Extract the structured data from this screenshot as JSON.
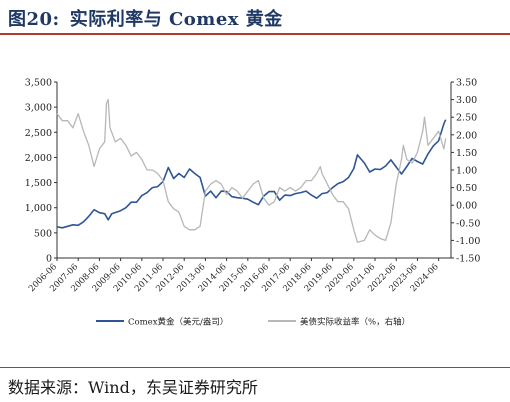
{
  "figure": {
    "number": "图20:",
    "title": "实际利率与 Comex 黄金",
    "source": "数据来源：Wind，东吴证券研究所"
  },
  "chart_data": {
    "type": "line",
    "grid": false,
    "legend_position": "bottom",
    "x_ticks": [
      "2006-06",
      "2007-06",
      "2008-06",
      "2009-06",
      "2010-06",
      "2011-06",
      "2012-06",
      "2013-06",
      "2014-06",
      "2015-06",
      "2016-06",
      "2017-06",
      "2018-06",
      "2019-06",
      "2020-06",
      "2021-06",
      "2022-06",
      "2023-06",
      "2024-06"
    ],
    "y_left": {
      "ylim": [
        0,
        3500
      ],
      "ticks": [
        "0",
        "500",
        "1,000",
        "1,500",
        "2,000",
        "2,500",
        "3,000",
        "3,500"
      ]
    },
    "y_right": {
      "ylim": [
        -1.5,
        3.5
      ],
      "ticks": [
        "-1.50",
        "-1.00",
        "-0.50",
        "0.00",
        "0.50",
        "1.00",
        "1.50",
        "2.00",
        "2.50",
        "3.00",
        "3.50"
      ]
    },
    "series": [
      {
        "name": "Comex黄金（美元/盎司）",
        "axis": "left",
        "color": "#2e5596",
        "points": [
          [
            "2006-06",
            620
          ],
          [
            "2006-09",
            600
          ],
          [
            "2006-12",
            630
          ],
          [
            "2007-03",
            660
          ],
          [
            "2007-06",
            650
          ],
          [
            "2007-09",
            720
          ],
          [
            "2007-12",
            830
          ],
          [
            "2008-03",
            960
          ],
          [
            "2008-06",
            900
          ],
          [
            "2008-09",
            880
          ],
          [
            "2008-11",
            760
          ],
          [
            "2009-01",
            880
          ],
          [
            "2009-06",
            940
          ],
          [
            "2009-09",
            1000
          ],
          [
            "2009-12",
            1110
          ],
          [
            "2010-03",
            1110
          ],
          [
            "2010-06",
            1240
          ],
          [
            "2010-09",
            1300
          ],
          [
            "2010-12",
            1400
          ],
          [
            "2011-03",
            1420
          ],
          [
            "2011-06",
            1520
          ],
          [
            "2011-09",
            1800
          ],
          [
            "2011-12",
            1580
          ],
          [
            "2012-03",
            1680
          ],
          [
            "2012-06",
            1600
          ],
          [
            "2012-09",
            1770
          ],
          [
            "2012-12",
            1680
          ],
          [
            "2013-03",
            1600
          ],
          [
            "2013-06",
            1230
          ],
          [
            "2013-09",
            1330
          ],
          [
            "2013-12",
            1200
          ],
          [
            "2014-03",
            1330
          ],
          [
            "2014-06",
            1320
          ],
          [
            "2014-09",
            1220
          ],
          [
            "2014-12",
            1200
          ],
          [
            "2015-03",
            1190
          ],
          [
            "2015-06",
            1170
          ],
          [
            "2015-09",
            1110
          ],
          [
            "2015-12",
            1060
          ],
          [
            "2016-03",
            1230
          ],
          [
            "2016-06",
            1320
          ],
          [
            "2016-09",
            1320
          ],
          [
            "2016-12",
            1150
          ],
          [
            "2017-03",
            1250
          ],
          [
            "2017-06",
            1240
          ],
          [
            "2017-09",
            1280
          ],
          [
            "2017-12",
            1300
          ],
          [
            "2018-03",
            1330
          ],
          [
            "2018-06",
            1250
          ],
          [
            "2018-09",
            1190
          ],
          [
            "2018-12",
            1280
          ],
          [
            "2019-03",
            1300
          ],
          [
            "2019-06",
            1400
          ],
          [
            "2019-09",
            1480
          ],
          [
            "2019-12",
            1520
          ],
          [
            "2020-03",
            1600
          ],
          [
            "2020-06",
            1780
          ],
          [
            "2020-08",
            2050
          ],
          [
            "2020-12",
            1890
          ],
          [
            "2021-03",
            1710
          ],
          [
            "2021-06",
            1770
          ],
          [
            "2021-09",
            1760
          ],
          [
            "2021-12",
            1830
          ],
          [
            "2022-03",
            1950
          ],
          [
            "2022-06",
            1810
          ],
          [
            "2022-09",
            1670
          ],
          [
            "2022-12",
            1820
          ],
          [
            "2023-03",
            1980
          ],
          [
            "2023-06",
            1920
          ],
          [
            "2023-09",
            1870
          ],
          [
            "2023-12",
            2070
          ],
          [
            "2024-03",
            2230
          ],
          [
            "2024-06",
            2330
          ],
          [
            "2024-09",
            2670
          ],
          [
            "2024-10",
            2750
          ]
        ]
      },
      {
        "name": "美债实际收益率（%，右轴）",
        "axis": "right",
        "color": "#b7b7b7",
        "points": [
          [
            "2006-06",
            2.6
          ],
          [
            "2006-09",
            2.4
          ],
          [
            "2006-12",
            2.4
          ],
          [
            "2007-03",
            2.2
          ],
          [
            "2007-06",
            2.6
          ],
          [
            "2007-09",
            2.1
          ],
          [
            "2007-12",
            1.7
          ],
          [
            "2008-03",
            1.1
          ],
          [
            "2008-06",
            1.6
          ],
          [
            "2008-09",
            1.8
          ],
          [
            "2008-10",
            2.9
          ],
          [
            "2008-11",
            3.0
          ],
          [
            "2008-12",
            2.2
          ],
          [
            "2009-03",
            1.8
          ],
          [
            "2009-06",
            1.9
          ],
          [
            "2009-09",
            1.7
          ],
          [
            "2009-12",
            1.4
          ],
          [
            "2010-03",
            1.5
          ],
          [
            "2010-06",
            1.3
          ],
          [
            "2010-09",
            1.0
          ],
          [
            "2010-12",
            1.0
          ],
          [
            "2011-03",
            0.9
          ],
          [
            "2011-06",
            0.7
          ],
          [
            "2011-09",
            0.1
          ],
          [
            "2011-12",
            -0.1
          ],
          [
            "2012-03",
            -0.2
          ],
          [
            "2012-06",
            -0.6
          ],
          [
            "2012-09",
            -0.7
          ],
          [
            "2012-12",
            -0.7
          ],
          [
            "2013-03",
            -0.6
          ],
          [
            "2013-06",
            0.4
          ],
          [
            "2013-09",
            0.6
          ],
          [
            "2013-12",
            0.7
          ],
          [
            "2014-03",
            0.6
          ],
          [
            "2014-06",
            0.3
          ],
          [
            "2014-09",
            0.5
          ],
          [
            "2014-12",
            0.4
          ],
          [
            "2015-03",
            0.2
          ],
          [
            "2015-06",
            0.4
          ],
          [
            "2015-09",
            0.6
          ],
          [
            "2015-12",
            0.7
          ],
          [
            "2016-03",
            0.2
          ],
          [
            "2016-06",
            0.0
          ],
          [
            "2016-09",
            0.1
          ],
          [
            "2016-12",
            0.5
          ],
          [
            "2017-03",
            0.4
          ],
          [
            "2017-06",
            0.5
          ],
          [
            "2017-09",
            0.4
          ],
          [
            "2017-12",
            0.5
          ],
          [
            "2018-03",
            0.7
          ],
          [
            "2018-06",
            0.7
          ],
          [
            "2018-09",
            0.9
          ],
          [
            "2018-11",
            1.1
          ],
          [
            "2018-12",
            0.9
          ],
          [
            "2019-03",
            0.6
          ],
          [
            "2019-06",
            0.3
          ],
          [
            "2019-09",
            0.1
          ],
          [
            "2019-12",
            0.1
          ],
          [
            "2020-03",
            -0.1
          ],
          [
            "2020-06",
            -0.7
          ],
          [
            "2020-08",
            -1.05
          ],
          [
            "2020-12",
            -1.0
          ],
          [
            "2021-03",
            -0.7
          ],
          [
            "2021-06",
            -0.85
          ],
          [
            "2021-09",
            -0.95
          ],
          [
            "2021-12",
            -1.0
          ],
          [
            "2022-03",
            -0.5
          ],
          [
            "2022-06",
            0.6
          ],
          [
            "2022-09",
            1.3
          ],
          [
            "2022-10",
            1.7
          ],
          [
            "2022-12",
            1.3
          ],
          [
            "2023-03",
            1.2
          ],
          [
            "2023-06",
            1.5
          ],
          [
            "2023-09",
            2.1
          ],
          [
            "2023-10",
            2.5
          ],
          [
            "2023-12",
            1.7
          ],
          [
            "2024-03",
            1.9
          ],
          [
            "2024-06",
            2.1
          ],
          [
            "2024-09",
            1.6
          ],
          [
            "2024-10",
            1.9
          ]
        ]
      }
    ]
  }
}
